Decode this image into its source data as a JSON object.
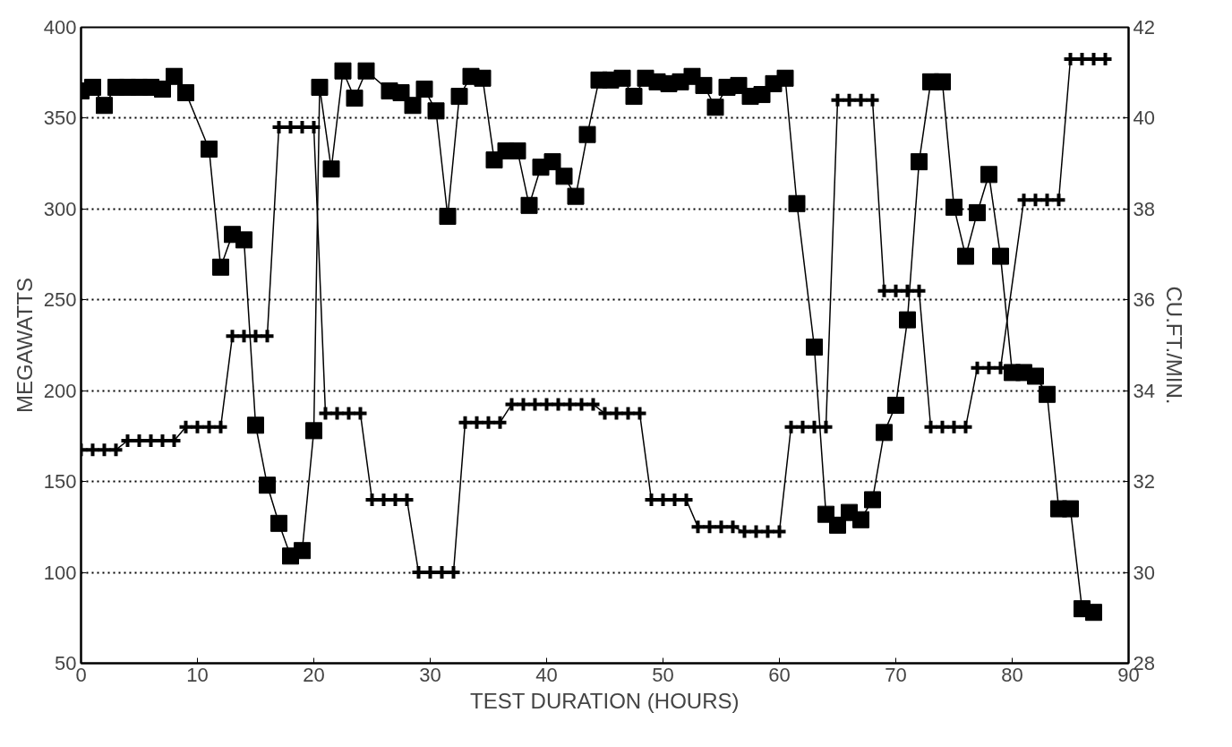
{
  "chart_data": {
    "type": "line",
    "xlabel": "TEST DURATION (HOURS)",
    "ylabel": "MEGAWATTS",
    "y2label": "CU.FT./MIN.",
    "xlim": [
      0,
      90
    ],
    "xticks": [
      0,
      10,
      20,
      30,
      40,
      50,
      60,
      70,
      80,
      90
    ],
    "ylim": [
      50,
      400
    ],
    "yticks": [
      50,
      100,
      150,
      200,
      250,
      300,
      350,
      400
    ],
    "y2lim": [
      28,
      42
    ],
    "y2ticks": [
      28,
      30,
      32,
      34,
      36,
      38,
      40,
      42
    ],
    "grid": "y",
    "line_style": "solid",
    "series": [
      {
        "color": "#000000",
        "marker": "square",
        "x": [
          0,
          1,
          2,
          3,
          4,
          5,
          6,
          7,
          8,
          9,
          11,
          12,
          13,
          14,
          15,
          16,
          17,
          18,
          19,
          20,
          20.5,
          21.5,
          22.5,
          23.5,
          24.5,
          26.5,
          27.5,
          28.5,
          29.5,
          30.5,
          31.5,
          32.5,
          33.5,
          34.5,
          35.5,
          36.5,
          37.5,
          38.5,
          39.5,
          40.5,
          41.5,
          42.5,
          43.5,
          44.5,
          45.5,
          46.5,
          47.5,
          48.5,
          49.5,
          50.5,
          51.5,
          52.5,
          53.5,
          54.5,
          55.5,
          56.5,
          57.5,
          58.5,
          59.5,
          60.5,
          61.5,
          63,
          64,
          65,
          66,
          67,
          68,
          69,
          70,
          71,
          72,
          73,
          74,
          75,
          76,
          77,
          78,
          79,
          80,
          81,
          82,
          83,
          84,
          85,
          86,
          87
        ],
        "values": [
          365,
          367,
          357,
          367,
          367,
          367,
          367,
          366,
          373,
          364,
          333,
          268,
          286,
          283,
          181,
          148,
          127,
          109,
          112,
          178,
          367,
          322,
          376,
          361,
          376,
          365,
          364,
          357,
          366,
          354,
          296,
          362,
          373,
          372,
          327,
          332,
          332,
          302,
          323,
          326,
          318,
          307,
          341,
          371,
          371,
          372,
          362,
          372,
          370,
          369,
          370,
          373,
          368,
          356,
          367,
          368,
          362,
          363,
          369,
          372,
          303,
          224,
          132,
          126,
          133,
          129,
          140,
          177,
          192,
          239,
          326,
          370,
          370,
          301,
          274,
          298,
          319,
          274,
          210,
          210,
          208,
          198,
          135,
          135,
          80,
          78
        ]
      },
      {
        "color": "#000000",
        "marker": "cross",
        "axis": "y2",
        "x": [
          0,
          1,
          2,
          3,
          4,
          5,
          6,
          7,
          8,
          9,
          10,
          11,
          12,
          13,
          14,
          15,
          16,
          17,
          18,
          19,
          20,
          21,
          22,
          23,
          24,
          25,
          26,
          27,
          28,
          29,
          30,
          31,
          32,
          33,
          34,
          35,
          36,
          37,
          38,
          39,
          40,
          41,
          42,
          43,
          44,
          45,
          46,
          47,
          48,
          49,
          50,
          51,
          52,
          53,
          54,
          55,
          56,
          57,
          58,
          59,
          60,
          61,
          62,
          63,
          64,
          65,
          66,
          67,
          68,
          69,
          70,
          71,
          72,
          73,
          74,
          75,
          76,
          77,
          78,
          79,
          81,
          82,
          83,
          84,
          85,
          86,
          87,
          88
        ],
        "values": [
          32.7,
          32.7,
          32.7,
          32.7,
          32.9,
          32.9,
          32.9,
          32.9,
          32.9,
          33.2,
          33.2,
          33.2,
          33.2,
          35.2,
          35.2,
          35.2,
          35.2,
          39.8,
          39.8,
          39.8,
          39.8,
          33.5,
          33.5,
          33.5,
          33.5,
          31.6,
          31.6,
          31.6,
          31.6,
          30.0,
          30.0,
          30.0,
          30.0,
          33.3,
          33.3,
          33.3,
          33.3,
          33.7,
          33.7,
          33.7,
          33.7,
          33.7,
          33.7,
          33.7,
          33.7,
          33.5,
          33.5,
          33.5,
          33.5,
          31.6,
          31.6,
          31.6,
          31.6,
          31.0,
          31.0,
          31.0,
          31.0,
          30.9,
          30.9,
          30.9,
          30.9,
          33.2,
          33.2,
          33.2,
          33.2,
          40.4,
          40.4,
          40.4,
          40.4,
          36.2,
          36.2,
          36.2,
          36.2,
          33.2,
          33.2,
          33.2,
          33.2,
          34.5,
          34.5,
          34.5,
          38.2,
          38.2,
          38.2,
          38.2,
          41.3,
          41.3,
          41.3,
          41.3
        ]
      }
    ]
  }
}
